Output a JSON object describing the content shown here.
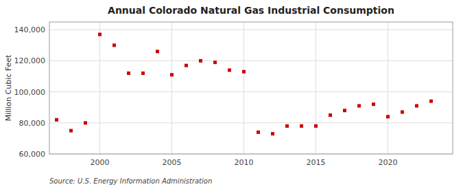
{
  "chart_data": {
    "type": "scatter",
    "title": "Annual Colorado Natural Gas Industrial Consumption",
    "y_label": "Million Cubic Feet",
    "source": "Source: U.S. Energy Information Administration",
    "x": [
      1997,
      1998,
      1999,
      2000,
      2001,
      2002,
      2003,
      2004,
      2005,
      2006,
      2007,
      2008,
      2009,
      2010,
      2011,
      2012,
      2013,
      2014,
      2015,
      2016,
      2017,
      2018,
      2019,
      2020,
      2021,
      2022,
      2023
    ],
    "values": [
      82000,
      75000,
      80000,
      137000,
      130000,
      112000,
      112000,
      126000,
      111000,
      117000,
      120000,
      119000,
      114000,
      113000,
      74000,
      73000,
      78000,
      78000,
      78000,
      85000,
      88000,
      91000,
      92000,
      84000,
      87000,
      91000,
      94000
    ],
    "color": "#cc0000",
    "marker": "square",
    "xlim": [
      1996.5,
      2024.5
    ],
    "ylim": [
      60000,
      145000
    ],
    "xticks": [
      2000,
      2005,
      2010,
      2015,
      2020
    ],
    "yticks": [
      {
        "value": 60000,
        "label": "60,000"
      },
      {
        "value": 80000,
        "label": "80,000"
      },
      {
        "value": 100000,
        "label": "100,000"
      },
      {
        "value": 120000,
        "label": "120,000"
      },
      {
        "value": 140000,
        "label": "140,000"
      }
    ],
    "grid": true
  }
}
